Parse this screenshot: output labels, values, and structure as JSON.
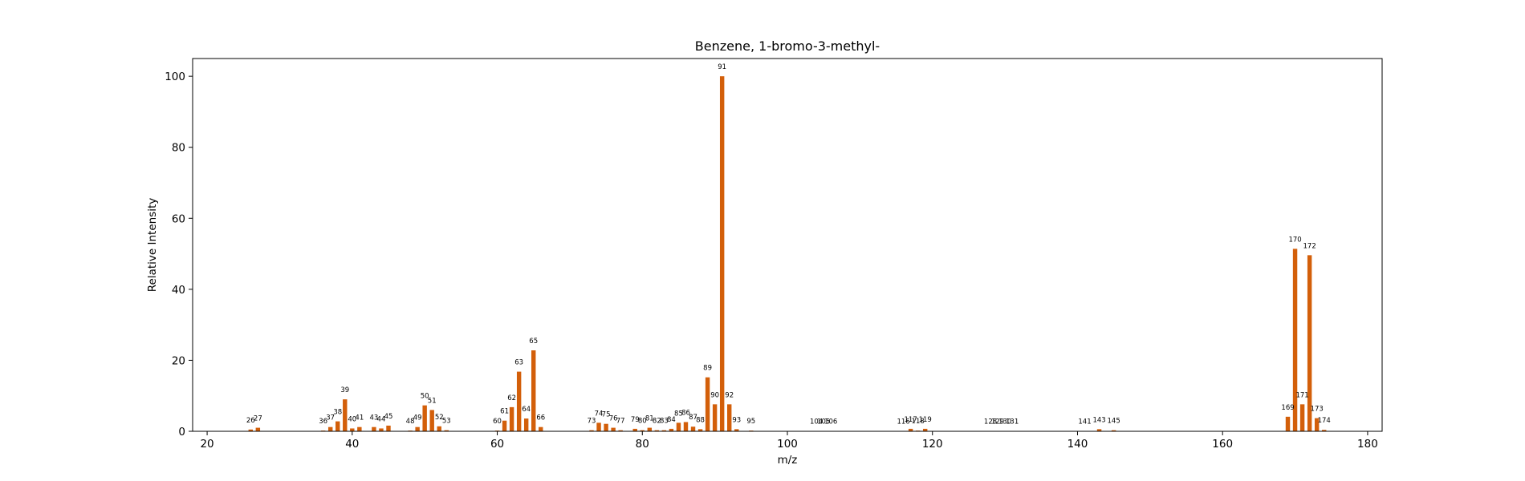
{
  "chart_data": {
    "type": "bar",
    "title": "Benzene, 1-bromo-3-methyl-",
    "xlabel": "m/z",
    "ylabel": "Relative Intensity",
    "xlim": [
      18,
      182
    ],
    "ylim": [
      0,
      105
    ],
    "xticks": [
      20,
      40,
      60,
      80,
      100,
      120,
      140,
      160,
      180
    ],
    "yticks": [
      0,
      20,
      40,
      60,
      80,
      100
    ],
    "grid": false,
    "legend": "none",
    "bar_color": "#d35f0a",
    "x": [
      26,
      27,
      36,
      37,
      38,
      39,
      40,
      41,
      43,
      44,
      45,
      48,
      49,
      50,
      51,
      52,
      53,
      60,
      61,
      62,
      63,
      64,
      65,
      66,
      73,
      74,
      75,
      76,
      77,
      79,
      80,
      81,
      82,
      83,
      84,
      85,
      86,
      87,
      88,
      89,
      90,
      91,
      92,
      93,
      95,
      104,
      105,
      106,
      116,
      117,
      118,
      119,
      128,
      129,
      130,
      131,
      141,
      143,
      145,
      169,
      170,
      171,
      172,
      173,
      174
    ],
    "values": [
      0.5,
      1.0,
      0.2,
      1.2,
      2.8,
      9.0,
      0.8,
      1.2,
      1.2,
      0.8,
      1.6,
      0.2,
      1.2,
      7.3,
      6.0,
      1.4,
      0.3,
      0.2,
      3.0,
      6.8,
      16.8,
      3.6,
      22.8,
      1.2,
      0.3,
      2.4,
      2.1,
      1.0,
      0.3,
      0.7,
      0.3,
      1.0,
      0.3,
      0.3,
      0.7,
      2.4,
      2.6,
      1.3,
      0.6,
      15.2,
      7.6,
      100.0,
      7.6,
      0.6,
      0.2,
      0.1,
      0.1,
      0.1,
      0.1,
      0.7,
      0.2,
      0.7,
      0.1,
      0.1,
      0.1,
      0.1,
      0.1,
      0.6,
      0.3,
      4.1,
      51.4,
      7.6,
      49.6,
      3.7,
      0.4
    ]
  }
}
